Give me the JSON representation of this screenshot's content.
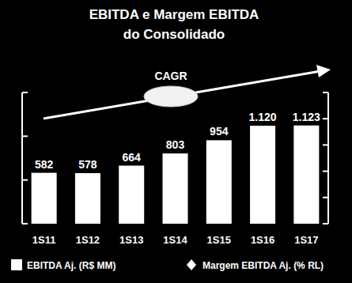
{
  "chart_data": {
    "type": "bar",
    "title": "EBITDA e Margem EBITDA",
    "subtitle": "do Consolidado",
    "annotations": [
      "CAGR"
    ],
    "categories": [
      "1S11",
      "1S12",
      "1S13",
      "1S14",
      "1S15",
      "1S16",
      "1S17"
    ],
    "series": [
      {
        "name": "EBITDA Aj. (R$ MM)",
        "type": "bar",
        "color": "#ffffff",
        "values": [
          582,
          578,
          664,
          803,
          954,
          1120,
          1123
        ],
        "value_labels": [
          "582",
          "578",
          "664",
          "803",
          "954",
          "1.120",
          "1.123"
        ]
      },
      {
        "name": "Margem EBITDA Aj. (% RL)",
        "type": "line",
        "marker": "diamond",
        "color": "#ffffff",
        "axis": "y2",
        "values": [
          null,
          null,
          null,
          null,
          null,
          null,
          null
        ]
      }
    ],
    "ylim": [
      0,
      1500
    ],
    "yticks": [
      0,
      500,
      1000,
      1500
    ],
    "y2lim": [
      0,
      50
    ],
    "y2ticks": [
      0,
      10,
      20,
      30,
      40,
      50
    ],
    "grid": false,
    "data_labels": true,
    "tick_labels": false
  }
}
